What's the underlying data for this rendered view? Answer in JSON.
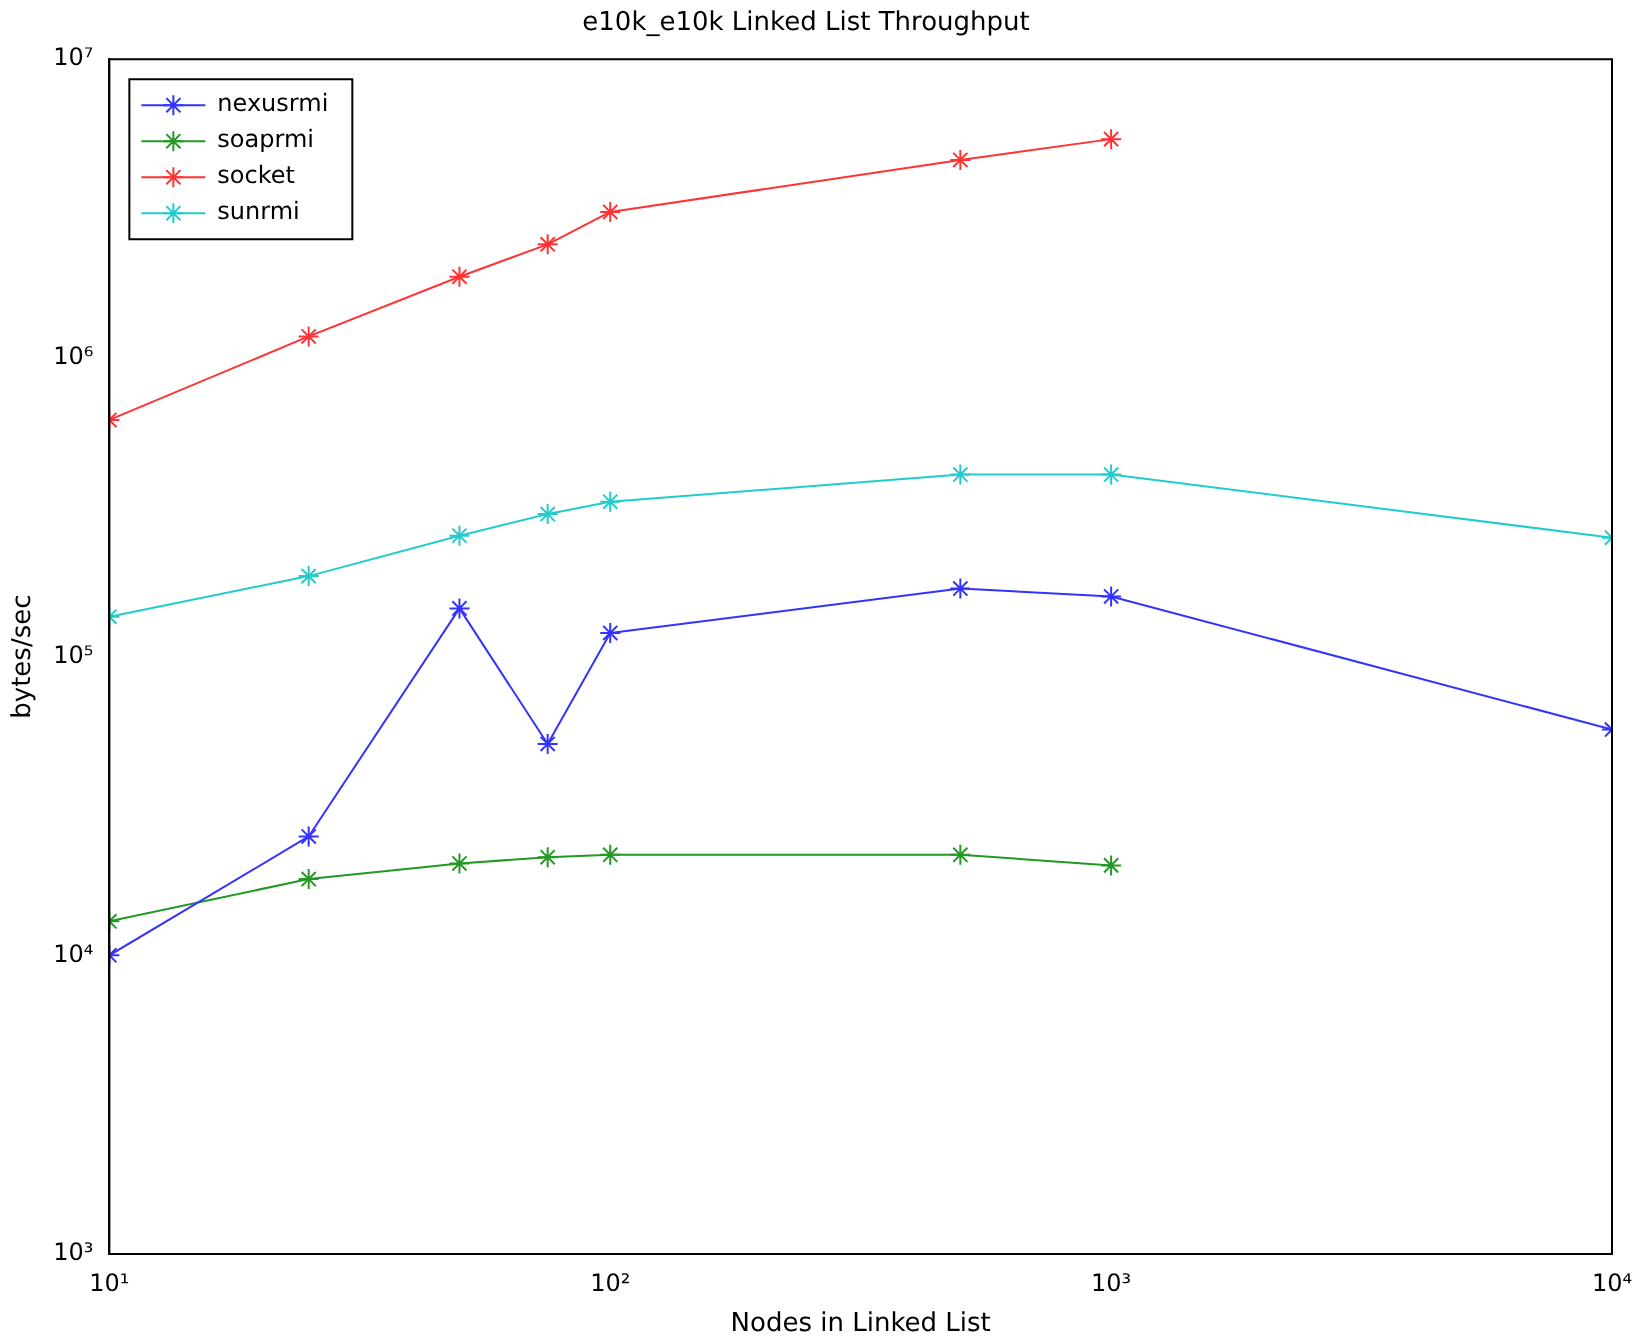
{
  "chart_data": {
    "type": "line",
    "title": "e10k_e10k Linked List Throughput",
    "xlabel": "Nodes in Linked List",
    "ylabel": "bytes/sec",
    "log": "xy",
    "grid": false,
    "legend": "top left",
    "marker": "cross",
    "line_style": "solid",
    "xlim": [
      10,
      10000
    ],
    "ylim": [
      1000,
      10000000
    ],
    "xticks": [
      {
        "value": 10,
        "label": "10¹"
      },
      {
        "value": 100,
        "label": "10²"
      },
      {
        "value": 1000,
        "label": "10³"
      },
      {
        "value": 10000,
        "label": "10⁴"
      }
    ],
    "yticks": [
      {
        "value": 1000,
        "label": "10³"
      },
      {
        "value": 10000,
        "label": "10⁴"
      },
      {
        "value": 100000,
        "label": "10⁵"
      },
      {
        "value": 1000000,
        "label": "10⁶"
      },
      {
        "value": 10000000,
        "label": "10⁷"
      }
    ],
    "series": [
      {
        "name": "nexusrmi",
        "color": "#3333ff",
        "x": [
          10,
          25,
          50,
          75,
          100,
          500,
          1000,
          10000
        ],
        "values": [
          10000,
          25000,
          145000,
          51000,
          120000,
          169000,
          159000,
          57000
        ]
      },
      {
        "name": "soaprmi",
        "color": "#229922",
        "x": [
          10,
          25,
          50,
          75,
          100,
          500,
          1000
        ],
        "values": [
          13000,
          18000,
          20300,
          21300,
          21700,
          21700,
          20000
        ]
      },
      {
        "name": "socket",
        "color": "#ff3333",
        "x": [
          10,
          25,
          50,
          75,
          100,
          500,
          1000
        ],
        "values": [
          620000,
          1180000,
          1870000,
          2400000,
          3080000,
          4600000,
          5400000
        ]
      },
      {
        "name": "sunrmi",
        "color": "#22cccc",
        "x": [
          10,
          25,
          50,
          75,
          100,
          500,
          1000,
          10000
        ],
        "values": [
          136000,
          186000,
          254000,
          300000,
          330000,
          407000,
          407000,
          250000
        ]
      }
    ]
  }
}
